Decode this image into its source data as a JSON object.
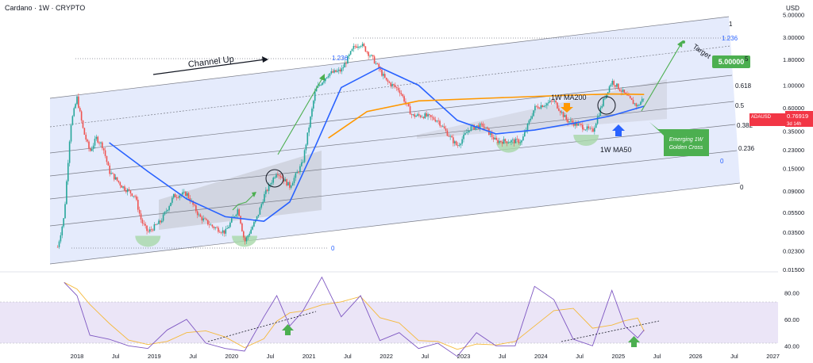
{
  "header": {
    "title": "Cardano · 1W · CRYPTO",
    "currency": "USD"
  },
  "price_badge": {
    "symbol": "ADAUSD",
    "price": "0.76919",
    "countdown": "3d 14h",
    "color": "#f23645"
  },
  "annotations": {
    "channel_label": "Channel Up",
    "target_label": "Target",
    "target_value": "5.00000",
    "ma200_label": "1W MA200",
    "ma50_label": "1W MA50",
    "golden_cross_line1": "Emerging 1W",
    "golden_cross_line2": "Golden Cross"
  },
  "fib_levels": {
    "top_channel": [
      "1",
      "1.236",
      "0.618",
      "0.5",
      "0.382",
      "0.236",
      "0",
      "0"
    ],
    "left_channel": [
      "1.236",
      "0"
    ]
  },
  "colors": {
    "up": "#26a69a",
    "down": "#ef5350",
    "ma50": "#2962ff",
    "ma200": "#ff9800",
    "channel_fill": "#dfe6fb",
    "rsi": "#7e57c2",
    "rsi_ma": "#f5b93a",
    "annotation_green": "#4caf50",
    "accumulation": "#b7ddb8",
    "fib_blue": "#2962ff"
  },
  "chart_data": [
    {
      "type": "candlestick",
      "title": "Cardano · 1W · CRYPTO",
      "ylabel": "USD",
      "yscale": "log",
      "ylim": [
        0.015,
        6.5
      ],
      "y_ticks": [
        "9.00000",
        "5.00000",
        "3.00000",
        "1.80000",
        "1.00000",
        "0.60000",
        "0.35000",
        "0.23000",
        "0.15000",
        "0.09000",
        "0.05500",
        "0.03500",
        "0.02300",
        "0.01500"
      ],
      "x_ticks": [
        "2018",
        "Jul",
        "2019",
        "Jul",
        "2020",
        "Jul",
        "2021",
        "Jul",
        "2022",
        "Jul",
        "2023",
        "Jul",
        "2024",
        "Jul",
        "2025",
        "Jul",
        "2026",
        "Jul",
        "2027"
      ],
      "xlim": [
        "2017-09",
        "2027-02"
      ],
      "price_series": [
        [
          "2017-10",
          0.025
        ],
        [
          "2017-11",
          0.05
        ],
        [
          "2017-12",
          0.4
        ],
        [
          "2018-01",
          0.75
        ],
        [
          "2018-02",
          0.35
        ],
        [
          "2018-03",
          0.22
        ],
        [
          "2018-04",
          0.3
        ],
        [
          "2018-05",
          0.25
        ],
        [
          "2018-06",
          0.14
        ],
        [
          "2018-08",
          0.1
        ],
        [
          "2018-10",
          0.08
        ],
        [
          "2018-11",
          0.045
        ],
        [
          "2018-12",
          0.035
        ],
        [
          "2019-02",
          0.045
        ],
        [
          "2019-04",
          0.08
        ],
        [
          "2019-06",
          0.085
        ],
        [
          "2019-08",
          0.05
        ],
        [
          "2019-10",
          0.04
        ],
        [
          "2019-12",
          0.035
        ],
        [
          "2020-02",
          0.06
        ],
        [
          "2020-03",
          0.028
        ],
        [
          "2020-05",
          0.05
        ],
        [
          "2020-06",
          0.08
        ],
        [
          "2020-08",
          0.14
        ],
        [
          "2020-10",
          0.1
        ],
        [
          "2020-12",
          0.17
        ],
        [
          "2021-02",
          0.9
        ],
        [
          "2021-04",
          1.3
        ],
        [
          "2021-06",
          1.4
        ],
        [
          "2021-08",
          2.4
        ],
        [
          "2021-09",
          2.6
        ],
        [
          "2021-11",
          1.8
        ],
        [
          "2022-01",
          1.1
        ],
        [
          "2022-03",
          0.9
        ],
        [
          "2022-05",
          0.5
        ],
        [
          "2022-07",
          0.5
        ],
        [
          "2022-09",
          0.45
        ],
        [
          "2022-11",
          0.3
        ],
        [
          "2022-12",
          0.25
        ],
        [
          "2023-02",
          0.38
        ],
        [
          "2023-04",
          0.4
        ],
        [
          "2023-06",
          0.28
        ],
        [
          "2023-08",
          0.28
        ],
        [
          "2023-10",
          0.28
        ],
        [
          "2023-12",
          0.6
        ],
        [
          "2024-03",
          0.7
        ],
        [
          "2024-05",
          0.45
        ],
        [
          "2024-07",
          0.4
        ],
        [
          "2024-09",
          0.35
        ],
        [
          "2024-11",
          0.8
        ],
        [
          "2024-12",
          1.1
        ],
        [
          "2025-01",
          0.95
        ],
        [
          "2025-03",
          0.7
        ],
        [
          "2025-04",
          0.62
        ],
        [
          "2025-05",
          0.77
        ]
      ],
      "ma50_series": [
        [
          "2018-06",
          0.27
        ],
        [
          "2018-12",
          0.14
        ],
        [
          "2019-06",
          0.075
        ],
        [
          "2019-12",
          0.05
        ],
        [
          "2020-06",
          0.045
        ],
        [
          "2020-10",
          0.07
        ],
        [
          "2021-02",
          0.25
        ],
        [
          "2021-06",
          0.95
        ],
        [
          "2021-12",
          1.5
        ],
        [
          "2022-06",
          1.0
        ],
        [
          "2022-12",
          0.45
        ],
        [
          "2023-06",
          0.33
        ],
        [
          "2023-12",
          0.36
        ],
        [
          "2024-06",
          0.42
        ],
        [
          "2024-12",
          0.5
        ],
        [
          "2025-05",
          0.62
        ]
      ],
      "ma200_series": [
        [
          "2021-04",
          0.3
        ],
        [
          "2021-10",
          0.55
        ],
        [
          "2022-06",
          0.7
        ],
        [
          "2023-06",
          0.75
        ],
        [
          "2024-06",
          0.8
        ],
        [
          "2024-12",
          0.82
        ],
        [
          "2025-05",
          0.81
        ]
      ],
      "target_price": 5.0,
      "current_price": 0.76919
    },
    {
      "type": "line",
      "name": "RSI",
      "y_ticks": [
        "80.00",
        "60.00",
        "40.00"
      ],
      "ylim": [
        30,
        90
      ],
      "band": [
        30,
        70
      ],
      "rsi_series": [
        [
          "2017-11",
          88
        ],
        [
          "2018-01",
          78
        ],
        [
          "2018-03",
          48
        ],
        [
          "2018-06",
          45
        ],
        [
          "2018-09",
          40
        ],
        [
          "2018-12",
          38
        ],
        [
          "2019-03",
          52
        ],
        [
          "2019-06",
          60
        ],
        [
          "2019-09",
          42
        ],
        [
          "2019-12",
          38
        ],
        [
          "2020-03",
          36
        ],
        [
          "2020-06",
          62
        ],
        [
          "2020-08",
          78
        ],
        [
          "2020-10",
          55
        ],
        [
          "2020-12",
          66
        ],
        [
          "2021-03",
          92
        ],
        [
          "2021-06",
          62
        ],
        [
          "2021-09",
          78
        ],
        [
          "2021-12",
          44
        ],
        [
          "2022-03",
          50
        ],
        [
          "2022-06",
          38
        ],
        [
          "2022-09",
          42
        ],
        [
          "2022-12",
          32
        ],
        [
          "2023-03",
          50
        ],
        [
          "2023-06",
          40
        ],
        [
          "2023-09",
          40
        ],
        [
          "2023-12",
          85
        ],
        [
          "2024-03",
          75
        ],
        [
          "2024-06",
          45
        ],
        [
          "2024-09",
          40
        ],
        [
          "2024-12",
          82
        ],
        [
          "2025-02",
          55
        ],
        [
          "2025-04",
          46
        ],
        [
          "2025-05",
          52
        ]
      ]
    }
  ]
}
